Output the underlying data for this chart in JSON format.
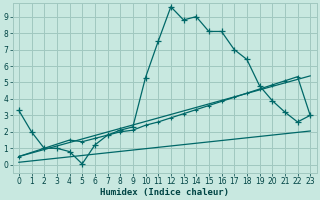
{
  "xlabel": "Humidex (Indice chaleur)",
  "xlim": [
    -0.5,
    23.5
  ],
  "ylim": [
    -0.5,
    9.8
  ],
  "xticks": [
    0,
    1,
    2,
    3,
    4,
    5,
    6,
    7,
    8,
    9,
    10,
    11,
    12,
    13,
    14,
    15,
    16,
    17,
    18,
    19,
    20,
    21,
    22,
    23
  ],
  "yticks": [
    0,
    1,
    2,
    3,
    4,
    5,
    6,
    7,
    8,
    9
  ],
  "bg_color": "#c8e8e0",
  "grid_color": "#a0c8c0",
  "line_color": "#006868",
  "line1_x": [
    0,
    1,
    2,
    3,
    4,
    5,
    6,
    7,
    8,
    9,
    10,
    11,
    12,
    13,
    14,
    15,
    16,
    17,
    18,
    19,
    20,
    21,
    22,
    23
  ],
  "line1_y": [
    3.3,
    2.0,
    1.0,
    1.0,
    0.8,
    0.05,
    1.2,
    1.8,
    2.1,
    2.3,
    5.3,
    7.5,
    9.6,
    8.8,
    9.0,
    8.1,
    8.1,
    7.0,
    6.4,
    4.8,
    3.9,
    3.2,
    2.6,
    3.0
  ],
  "line2_x": [
    0,
    4,
    5,
    6,
    7,
    8,
    9,
    10,
    11,
    12,
    13,
    14,
    15,
    16,
    17,
    18,
    19,
    20,
    21,
    22,
    23
  ],
  "line2_y": [
    0.5,
    1.5,
    1.4,
    1.6,
    1.8,
    2.0,
    2.1,
    2.4,
    2.6,
    2.85,
    3.1,
    3.35,
    3.6,
    3.85,
    4.1,
    4.35,
    4.6,
    4.85,
    5.1,
    5.35,
    3.0
  ],
  "line3_x": [
    0,
    23
  ],
  "line3_y": [
    0.15,
    2.05
  ],
  "line4_x": [
    0,
    23
  ],
  "line4_y": [
    0.5,
    5.4
  ]
}
